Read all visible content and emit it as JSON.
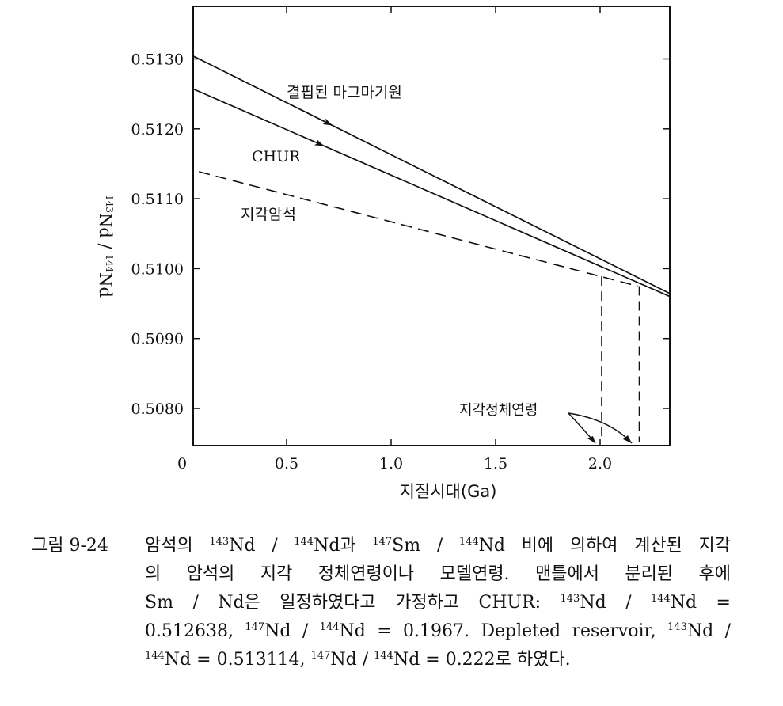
{
  "chart_data": {
    "type": "line",
    "xlabel": "지질시대(Ga)",
    "ylabel": "143Nd / 144Nd",
    "ylabel_parts": {
      "m1": "143",
      "n1": "Nd / ",
      "m2": "144",
      "n2": "Nd"
    },
    "xlim": [
      0,
      2.35
    ],
    "ylim": [
      0.5075,
      0.5139
    ],
    "x_ticks": [
      0,
      0.5,
      1.0,
      1.5,
      2.0
    ],
    "x_tick_labels": [
      "0",
      "0.5",
      "1.0",
      "1.5",
      "2.0"
    ],
    "y_ticks": [
      0.508,
      0.509,
      0.51,
      0.511,
      0.512,
      0.513
    ],
    "y_tick_labels": [
      "0.5080",
      "0.5090",
      "0.5100",
      "0.5110",
      "0.5120",
      "0.5130"
    ],
    "grid": false,
    "series": [
      {
        "name": "결핍된 마그마기원",
        "style": "solid",
        "x": [
          0,
          2.35
        ],
        "y": [
          0.51312,
          0.50962
        ]
      },
      {
        "name": "CHUR",
        "style": "solid",
        "x": [
          0,
          2.35
        ],
        "y": [
          0.51264,
          0.50958
        ]
      },
      {
        "name": "지각암석",
        "style": "dashed",
        "x": [
          0,
          2.18
        ],
        "y": [
          0.51145,
          0.50975
        ]
      }
    ],
    "model_ages": {
      "label": "지각정체연령",
      "x": [
        2.0,
        2.18
      ]
    }
  },
  "caption": {
    "label": "그림 9-24",
    "lines": [
      [
        {
          "t": "암석의 "
        },
        {
          "s": "143"
        },
        {
          "t": "Nd / "
        },
        {
          "s": "144"
        },
        {
          "t": "Nd과 "
        },
        {
          "s": "147"
        },
        {
          "t": "Sm / "
        },
        {
          "s": "144"
        },
        {
          "t": "Nd 비에 의하여 계산된 지각"
        }
      ],
      [
        {
          "t": "의 암석의 지각 정체연령이나 모델연령. 맨틀에서 분리된 후에"
        }
      ],
      [
        {
          "t": "Sm / Nd은 일정하였다고 가정하고 CHUR: "
        },
        {
          "s": "143"
        },
        {
          "t": "Nd / "
        },
        {
          "s": "144"
        },
        {
          "t": "Nd ="
        }
      ],
      [
        {
          "t": "0.512638, "
        },
        {
          "s": "147"
        },
        {
          "t": "Nd / "
        },
        {
          "s": "144"
        },
        {
          "t": "Nd = 0.1967. Depleted reservoir, "
        },
        {
          "s": "143"
        },
        {
          "t": "Nd /"
        }
      ],
      [
        {
          "s": "144"
        },
        {
          "t": "Nd = 0.513114, "
        },
        {
          "s": "147"
        },
        {
          "t": "Nd / "
        },
        {
          "s": "144"
        },
        {
          "t": "Nd = 0.222로 하였다."
        }
      ]
    ]
  }
}
